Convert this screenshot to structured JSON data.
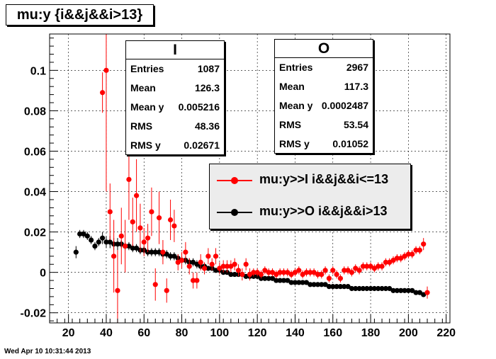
{
  "title": "mu:y {i&&j&&i>13}",
  "timestamp": "Wed Apr 10 10:31:44 2013",
  "stats_I": {
    "name": "I",
    "rows": [
      {
        "label": "Entries",
        "value": "1087"
      },
      {
        "label": "Mean",
        "value": "126.3"
      },
      {
        "label": "Mean y",
        "value": "0.005216"
      },
      {
        "label": "RMS",
        "value": "48.36"
      },
      {
        "label": "RMS y",
        "value": "0.02671"
      }
    ]
  },
  "stats_O": {
    "name": "O",
    "rows": [
      {
        "label": "Entries",
        "value": "2967"
      },
      {
        "label": "Mean",
        "value": "117.3"
      },
      {
        "label": "Mean y",
        "value": "0.0002487"
      },
      {
        "label": "RMS",
        "value": "53.54"
      },
      {
        "label": "RMS y",
        "value": "0.01052"
      }
    ]
  },
  "legend": [
    {
      "label": "mu:y>>I i&&j&&i<=13",
      "color": "#ff0000"
    },
    {
      "label": "mu:y>>O i&&j&&i>13",
      "color": "#000000"
    }
  ],
  "chart_data": {
    "type": "scatter",
    "title": "mu:y {i&&j&&i>13}",
    "xlim": [
      10,
      222
    ],
    "ylim": [
      -0.025,
      0.118
    ],
    "xticks": [
      20,
      40,
      60,
      80,
      100,
      120,
      140,
      160,
      180,
      200,
      220
    ],
    "yticks": [
      -0.02,
      0,
      0.02,
      0.04,
      0.06,
      0.08,
      0.1
    ],
    "ytick_labels": [
      "-0.02",
      "0",
      "0.02",
      "0.04",
      "0.06",
      "0.08",
      "0.1"
    ],
    "series": [
      {
        "name": "mu:y>>I i&&j&&i<=13",
        "color": "#ff0000",
        "points": [
          [
            38,
            0.089,
            0.01
          ],
          [
            40,
            0.1,
            0.06
          ],
          [
            42,
            0.03,
            0.014
          ],
          [
            44,
            0.008,
            0.018
          ],
          [
            46,
            -0.009,
            0.02
          ],
          [
            48,
            0.018,
            0.014
          ],
          [
            50,
            0.013,
            0.013
          ],
          [
            52,
            0.046,
            0.02
          ],
          [
            54,
            0.025,
            0.012
          ],
          [
            56,
            0.038,
            0.018
          ],
          [
            58,
            0.022,
            0.012
          ],
          [
            60,
            0.015,
            0.007
          ],
          [
            62,
            0.017,
            0.007
          ],
          [
            64,
            0.03,
            0.012
          ],
          [
            66,
            -0.006,
            0.008
          ],
          [
            68,
            0.027,
            0.013
          ],
          [
            70,
            0.01,
            0.006
          ],
          [
            72,
            -0.009,
            0.006
          ],
          [
            74,
            0.026,
            0.01
          ],
          [
            76,
            0.023,
            0.008
          ],
          [
            78,
            0.005,
            0.004
          ],
          [
            80,
            0.006,
            0.004
          ],
          [
            82,
            0.01,
            0.005
          ],
          [
            84,
            0.003,
            0.004
          ],
          [
            86,
            -0.004,
            0.004
          ],
          [
            88,
            -0.004,
            0.004
          ],
          [
            90,
            0.005,
            0.004
          ],
          [
            92,
            0.002,
            0.003
          ],
          [
            94,
            0.008,
            0.004
          ],
          [
            96,
            0.004,
            0.003
          ],
          [
            98,
            0.008,
            0.004
          ],
          [
            100,
            0.002,
            0.003
          ],
          [
            102,
            0.003,
            0.003
          ],
          [
            104,
            0.003,
            0.003
          ],
          [
            106,
            0.003,
            0.003
          ],
          [
            108,
            0.004,
            0.003
          ],
          [
            110,
            0.001,
            0.003
          ],
          [
            112,
            -0.001,
            0.003
          ],
          [
            114,
            0.004,
            0.003
          ],
          [
            116,
            -0.001,
            0.003
          ],
          [
            118,
            0.0,
            0.002
          ],
          [
            120,
            0.0,
            0.002
          ],
          [
            122,
            -0.001,
            0.002
          ],
          [
            124,
            0.001,
            0.002
          ],
          [
            126,
            0.0,
            0.002
          ],
          [
            128,
            0.0,
            0.002
          ],
          [
            130,
            -0.001,
            0.002
          ],
          [
            132,
            0.0,
            0.002
          ],
          [
            134,
            0.0,
            0.002
          ],
          [
            136,
            0.0,
            0.002
          ],
          [
            138,
            -0.001,
            0.002
          ],
          [
            140,
            0.0,
            0.002
          ],
          [
            142,
            0.001,
            0.002
          ],
          [
            144,
            -0.001,
            0.002
          ],
          [
            146,
            0.0,
            0.002
          ],
          [
            148,
            0.0,
            0.002
          ],
          [
            150,
            0.0,
            0.002
          ],
          [
            152,
            -0.001,
            0.002
          ],
          [
            154,
            -0.001,
            0.002
          ],
          [
            156,
            0.001,
            0.002
          ],
          [
            158,
            -0.003,
            0.002
          ],
          [
            160,
            0.001,
            0.002
          ],
          [
            162,
            -0.001,
            0.002
          ],
          [
            164,
            -0.003,
            0.002
          ],
          [
            166,
            0.001,
            0.002
          ],
          [
            168,
            0.001,
            0.002
          ],
          [
            170,
            0.0,
            0.002
          ],
          [
            172,
            0.002,
            0.002
          ],
          [
            174,
            0.001,
            0.002
          ],
          [
            176,
            0.003,
            0.002
          ],
          [
            178,
            0.003,
            0.002
          ],
          [
            180,
            0.003,
            0.002
          ],
          [
            182,
            0.002,
            0.002
          ],
          [
            184,
            0.003,
            0.002
          ],
          [
            186,
            0.003,
            0.002
          ],
          [
            188,
            0.005,
            0.002
          ],
          [
            190,
            0.005,
            0.002
          ],
          [
            192,
            0.006,
            0.002
          ],
          [
            194,
            0.007,
            0.002
          ],
          [
            196,
            0.007,
            0.002
          ],
          [
            198,
            0.008,
            0.002
          ],
          [
            200,
            0.009,
            0.002
          ],
          [
            202,
            0.009,
            0.002
          ],
          [
            204,
            0.011,
            0.002
          ],
          [
            206,
            0.011,
            0.002
          ],
          [
            208,
            0.014,
            0.003
          ],
          [
            210,
            -0.01,
            0.003
          ]
        ]
      },
      {
        "name": "mu:y>>O i&&j&&i>13",
        "color": "#000000",
        "points": [
          [
            24,
            0.01,
            0.003
          ],
          [
            26,
            0.019,
            0.002
          ],
          [
            28,
            0.019,
            0.002
          ],
          [
            30,
            0.018,
            0.002
          ],
          [
            32,
            0.016,
            0.002
          ],
          [
            34,
            0.013,
            0.002
          ],
          [
            36,
            0.015,
            0.002
          ],
          [
            38,
            0.017,
            0.003
          ],
          [
            40,
            0.015,
            0.003
          ],
          [
            42,
            0.015,
            0.003
          ],
          [
            44,
            0.014,
            0.003
          ],
          [
            46,
            0.014,
            0.003
          ],
          [
            48,
            0.014,
            0.002
          ],
          [
            50,
            0.013,
            0.002
          ],
          [
            52,
            0.013,
            0.002
          ],
          [
            54,
            0.012,
            0.002
          ],
          [
            56,
            0.012,
            0.002
          ],
          [
            58,
            0.011,
            0.002
          ],
          [
            60,
            0.011,
            0.002
          ],
          [
            62,
            0.01,
            0.002
          ],
          [
            64,
            0.01,
            0.002
          ],
          [
            66,
            0.01,
            0.002
          ],
          [
            68,
            0.01,
            0.002
          ],
          [
            70,
            0.009,
            0.002
          ],
          [
            72,
            0.009,
            0.002
          ],
          [
            74,
            0.008,
            0.002
          ],
          [
            76,
            0.008,
            0.002
          ],
          [
            78,
            0.007,
            0.002
          ],
          [
            80,
            0.006,
            0.002
          ],
          [
            82,
            0.006,
            0.002
          ],
          [
            84,
            0.005,
            0.002
          ],
          [
            86,
            0.005,
            0.002
          ],
          [
            88,
            0.004,
            0.002
          ],
          [
            90,
            0.003,
            0.001
          ],
          [
            92,
            0.003,
            0.001
          ],
          [
            94,
            0.002,
            0.001
          ],
          [
            96,
            0.002,
            0.001
          ],
          [
            98,
            0.001,
            0.001
          ],
          [
            100,
            0.001,
            0.001
          ],
          [
            102,
            0.0,
            0.001
          ],
          [
            104,
            0.0,
            0.001
          ],
          [
            106,
            -0.001,
            0.001
          ],
          [
            108,
            -0.001,
            0.001
          ],
          [
            110,
            -0.001,
            0.001
          ],
          [
            112,
            -0.001,
            0.001
          ],
          [
            114,
            -0.002,
            0.001
          ],
          [
            116,
            -0.002,
            0.001
          ],
          [
            118,
            -0.002,
            0.001
          ],
          [
            120,
            -0.002,
            0.001
          ],
          [
            122,
            -0.003,
            0.001
          ],
          [
            124,
            -0.003,
            0.001
          ],
          [
            126,
            -0.003,
            0.001
          ],
          [
            128,
            -0.003,
            0.001
          ],
          [
            130,
            -0.004,
            0.001
          ],
          [
            132,
            -0.004,
            0.001
          ],
          [
            134,
            -0.004,
            0.001
          ],
          [
            136,
            -0.004,
            0.001
          ],
          [
            138,
            -0.005,
            0.001
          ],
          [
            140,
            -0.005,
            0.001
          ],
          [
            142,
            -0.005,
            0.001
          ],
          [
            144,
            -0.005,
            0.001
          ],
          [
            146,
            -0.005,
            0.001
          ],
          [
            148,
            -0.006,
            0.001
          ],
          [
            150,
            -0.006,
            0.001
          ],
          [
            152,
            -0.006,
            0.001
          ],
          [
            154,
            -0.006,
            0.001
          ],
          [
            156,
            -0.006,
            0.001
          ],
          [
            158,
            -0.007,
            0.001
          ],
          [
            160,
            -0.007,
            0.001
          ],
          [
            162,
            -0.007,
            0.001
          ],
          [
            164,
            -0.007,
            0.001
          ],
          [
            166,
            -0.007,
            0.001
          ],
          [
            168,
            -0.007,
            0.001
          ],
          [
            170,
            -0.008,
            0.001
          ],
          [
            172,
            -0.008,
            0.001
          ],
          [
            174,
            -0.008,
            0.001
          ],
          [
            176,
            -0.008,
            0.001
          ],
          [
            178,
            -0.008,
            0.001
          ],
          [
            180,
            -0.008,
            0.001
          ],
          [
            182,
            -0.008,
            0.001
          ],
          [
            184,
            -0.008,
            0.001
          ],
          [
            186,
            -0.008,
            0.001
          ],
          [
            188,
            -0.008,
            0.001
          ],
          [
            190,
            -0.008,
            0.001
          ],
          [
            192,
            -0.009,
            0.001
          ],
          [
            194,
            -0.009,
            0.001
          ],
          [
            196,
            -0.009,
            0.001
          ],
          [
            198,
            -0.009,
            0.001
          ],
          [
            200,
            -0.009,
            0.001
          ],
          [
            202,
            -0.009,
            0.001
          ],
          [
            204,
            -0.01,
            0.001
          ],
          [
            206,
            -0.01,
            0.001
          ],
          [
            208,
            -0.011,
            0.001
          ]
        ]
      }
    ]
  }
}
